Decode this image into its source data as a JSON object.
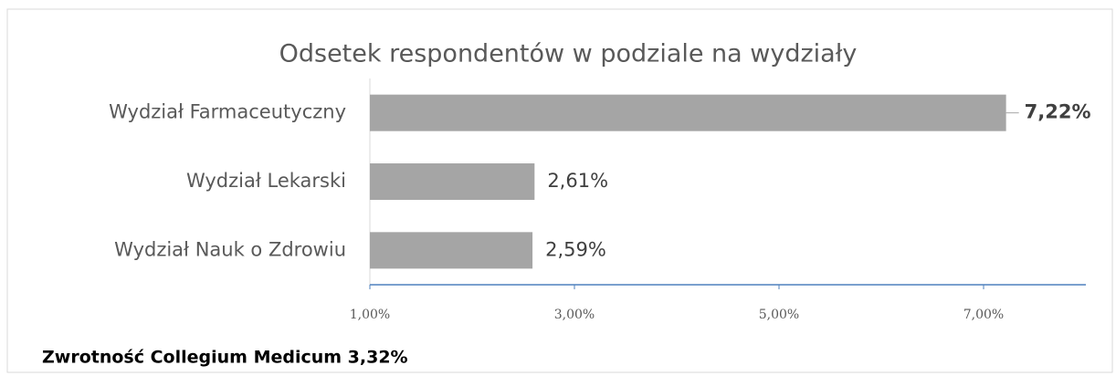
{
  "chart_data": {
    "type": "barh",
    "title": "Odsetek respondentów w podziale na wydziały",
    "categories": [
      "Wydział Farmaceutyczny",
      "Wydział Lekarski",
      "Wydział Nauk o Zdrowiu"
    ],
    "values": [
      7.22,
      2.61,
      2.59
    ],
    "value_labels": [
      "7,22%",
      "2,61%",
      "2,59%"
    ],
    "value_label_bold": [
      true,
      false,
      false
    ],
    "color": "#a5a5a5",
    "xlim": [
      1,
      8
    ],
    "xticks": [
      {
        "value": 1,
        "label": "1,00%"
      },
      {
        "value": 3,
        "label": "3,00%"
      },
      {
        "value": 5,
        "label": "5,00%"
      },
      {
        "value": 7,
        "label": "7,00%"
      }
    ],
    "grid": false,
    "note": "Zwrotność Collegium Medicum 3,32%"
  }
}
